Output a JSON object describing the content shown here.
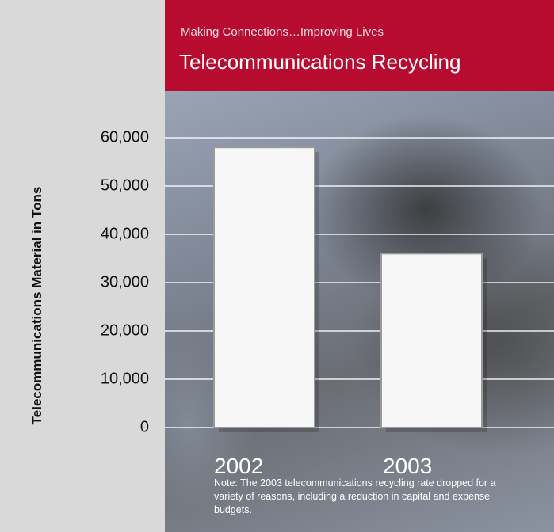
{
  "header": {
    "subtitle": "Making Connections…Improving Lives",
    "title": "Telecommunications Recycling"
  },
  "note": "Note: The 2003 telecommunications recycling rate dropped for a variety of reasons, including a reduction in capital and expense budgets.",
  "colors": {
    "header": "#b70c2f",
    "bar": "#f7f7f7",
    "panel": "#d9d9d9"
  },
  "chart_data": {
    "type": "bar",
    "categories": [
      "2002",
      "2003"
    ],
    "values": [
      58000,
      36000
    ],
    "xlabel": "",
    "ylabel": "Telecommunications Material in Tons",
    "ylim": [
      0,
      60000
    ],
    "yticks": [
      "0",
      "10,000",
      "20,000",
      "30,000",
      "40,000",
      "50,000",
      "60,000"
    ],
    "grid": true
  }
}
